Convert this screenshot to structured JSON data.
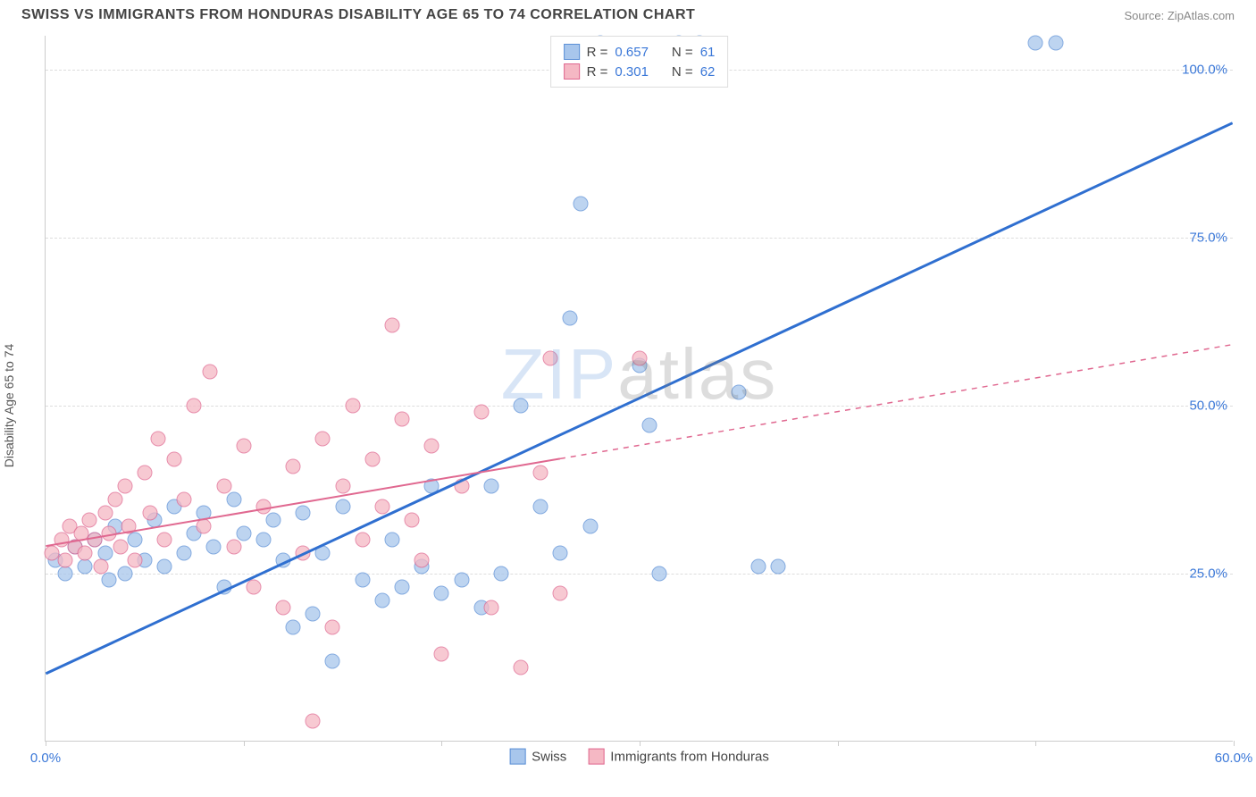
{
  "header": {
    "title": "SWISS VS IMMIGRANTS FROM HONDURAS DISABILITY AGE 65 TO 74 CORRELATION CHART",
    "source": "Source: ZipAtlas.com"
  },
  "watermark": {
    "zip": "ZIP",
    "atlas": "atlas"
  },
  "chart": {
    "type": "scatter",
    "y_axis_title": "Disability Age 65 to 74",
    "xlim": [
      0,
      60
    ],
    "ylim": [
      0,
      105
    ],
    "x_ticks": [
      0,
      10,
      20,
      30,
      40,
      50,
      60
    ],
    "x_tick_labels": {
      "0": "0.0%",
      "60": "60.0%"
    },
    "y_ticks": [
      25,
      50,
      75,
      100
    ],
    "y_tick_labels": {
      "25": "25.0%",
      "50": "50.0%",
      "75": "75.0%",
      "100": "100.0%"
    },
    "background_color": "#ffffff",
    "grid_color": "#dddddd",
    "axis_color": "#cccccc",
    "tick_label_color": "#3b78d8",
    "axis_title_color": "#555555",
    "point_radius": 8.5,
    "point_opacity": 0.75,
    "series": [
      {
        "name": "Swiss",
        "fill_color": "#a8c6ec",
        "stroke_color": "#5b8fd6",
        "legend_swatch_fill": "#a8c6ec",
        "legend_swatch_border": "#5b8fd6",
        "R_label": "R =",
        "R_value": "0.657",
        "N_label": "N =",
        "N_value": "61",
        "regression": {
          "color": "#2f6fd0",
          "width": 3,
          "solid_x_range": [
            0,
            60
          ],
          "y_at_x0": 10,
          "y_at_x60": 92
        },
        "points": [
          [
            0.5,
            27
          ],
          [
            1,
            25
          ],
          [
            1.5,
            29
          ],
          [
            2,
            26
          ],
          [
            2.5,
            30
          ],
          [
            3,
            28
          ],
          [
            3.2,
            24
          ],
          [
            3.5,
            32
          ],
          [
            4,
            25
          ],
          [
            4.5,
            30
          ],
          [
            5,
            27
          ],
          [
            5.5,
            33
          ],
          [
            6,
            26
          ],
          [
            6.5,
            35
          ],
          [
            7,
            28
          ],
          [
            7.5,
            31
          ],
          [
            8,
            34
          ],
          [
            8.5,
            29
          ],
          [
            9,
            23
          ],
          [
            9.5,
            36
          ],
          [
            10,
            31
          ],
          [
            11,
            30
          ],
          [
            11.5,
            33
          ],
          [
            12,
            27
          ],
          [
            12.5,
            17
          ],
          [
            13,
            34
          ],
          [
            13.5,
            19
          ],
          [
            14,
            28
          ],
          [
            14.5,
            12
          ],
          [
            15,
            35
          ],
          [
            16,
            24
          ],
          [
            17,
            21
          ],
          [
            17.5,
            30
          ],
          [
            18,
            23
          ],
          [
            19,
            26
          ],
          [
            19.5,
            38
          ],
          [
            20,
            22
          ],
          [
            21,
            24
          ],
          [
            22,
            20
          ],
          [
            22.5,
            38
          ],
          [
            23,
            25
          ],
          [
            24,
            50
          ],
          [
            25,
            35
          ],
          [
            26,
            28
          ],
          [
            26.5,
            63
          ],
          [
            27,
            80
          ],
          [
            27.5,
            32
          ],
          [
            28,
            104
          ],
          [
            30,
            56
          ],
          [
            30.5,
            47
          ],
          [
            31,
            25
          ],
          [
            32,
            104
          ],
          [
            33,
            104
          ],
          [
            35,
            52
          ],
          [
            36,
            26
          ],
          [
            37,
            26
          ],
          [
            50,
            104
          ],
          [
            51,
            104
          ]
        ]
      },
      {
        "name": "Immigrants from Honduras",
        "fill_color": "#f5b8c4",
        "stroke_color": "#e06890",
        "legend_swatch_fill": "#f5b8c4",
        "legend_swatch_border": "#e06890",
        "R_label": "R =",
        "R_value": "0.301",
        "N_label": "N =",
        "N_value": "62",
        "regression": {
          "color": "#e06890",
          "width": 2,
          "solid_x_range": [
            0,
            26
          ],
          "dash_x_range": [
            26,
            60
          ],
          "y_at_x0": 29,
          "y_at_x60": 59
        },
        "points": [
          [
            0.3,
            28
          ],
          [
            0.8,
            30
          ],
          [
            1,
            27
          ],
          [
            1.2,
            32
          ],
          [
            1.5,
            29
          ],
          [
            1.8,
            31
          ],
          [
            2,
            28
          ],
          [
            2.2,
            33
          ],
          [
            2.5,
            30
          ],
          [
            2.8,
            26
          ],
          [
            3,
            34
          ],
          [
            3.2,
            31
          ],
          [
            3.5,
            36
          ],
          [
            3.8,
            29
          ],
          [
            4,
            38
          ],
          [
            4.2,
            32
          ],
          [
            4.5,
            27
          ],
          [
            5,
            40
          ],
          [
            5.3,
            34
          ],
          [
            5.7,
            45
          ],
          [
            6,
            30
          ],
          [
            6.5,
            42
          ],
          [
            7,
            36
          ],
          [
            7.5,
            50
          ],
          [
            8,
            32
          ],
          [
            8.3,
            55
          ],
          [
            9,
            38
          ],
          [
            9.5,
            29
          ],
          [
            10,
            44
          ],
          [
            10.5,
            23
          ],
          [
            11,
            35
          ],
          [
            12,
            20
          ],
          [
            12.5,
            41
          ],
          [
            13,
            28
          ],
          [
            13.5,
            3
          ],
          [
            14,
            45
          ],
          [
            14.5,
            17
          ],
          [
            15,
            38
          ],
          [
            15.5,
            50
          ],
          [
            16,
            30
          ],
          [
            16.5,
            42
          ],
          [
            17,
            35
          ],
          [
            17.5,
            62
          ],
          [
            18,
            48
          ],
          [
            18.5,
            33
          ],
          [
            19,
            27
          ],
          [
            19.5,
            44
          ],
          [
            20,
            13
          ],
          [
            21,
            38
          ],
          [
            22,
            49
          ],
          [
            22.5,
            20
          ],
          [
            24,
            11
          ],
          [
            25,
            40
          ],
          [
            25.5,
            57
          ],
          [
            26,
            22
          ],
          [
            30,
            57
          ]
        ]
      }
    ],
    "legend_top": {
      "position": "top-center"
    },
    "legend_bottom": {
      "items": [
        {
          "label": "Swiss",
          "swatch_fill": "#a8c6ec",
          "swatch_border": "#5b8fd6"
        },
        {
          "label": "Immigrants from Honduras",
          "swatch_fill": "#f5b8c4",
          "swatch_border": "#e06890"
        }
      ]
    }
  }
}
